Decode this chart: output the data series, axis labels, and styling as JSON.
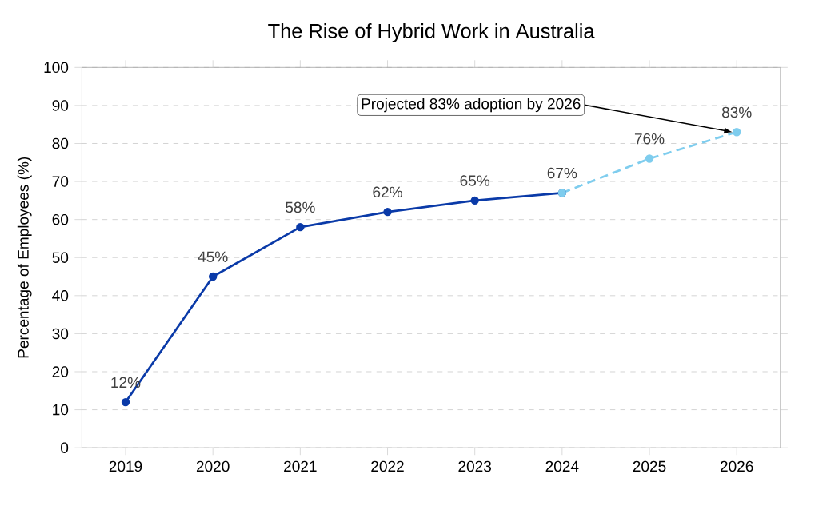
{
  "chart_data": {
    "type": "line",
    "title": "The Rise of Hybrid Work in Australia",
    "ylabel": "Percentage of Employees (%)",
    "categories": [
      "2019",
      "2020",
      "2021",
      "2022",
      "2023",
      "2024",
      "2025",
      "2026"
    ],
    "series": [
      {
        "color": "#0a3aa8",
        "values": [
          12,
          45,
          58,
          62,
          65,
          67,
          null,
          null
        ],
        "value_labels": [
          "12%",
          "45%",
          "58%",
          "62%",
          "65%",
          "67%",
          null,
          null
        ],
        "line_style": "solid"
      },
      {
        "color": "#7fcdee",
        "values": [
          null,
          null,
          null,
          null,
          null,
          67,
          76,
          83
        ],
        "value_labels": [
          null,
          null,
          null,
          null,
          null,
          null,
          "76%",
          "83%"
        ],
        "line_style": "dashed"
      }
    ],
    "annotations": [
      {
        "text": "Projected 83% adoption by 2026",
        "x": "2026",
        "y": 83
      }
    ],
    "ylim": [
      0,
      100
    ],
    "yticks": [
      0,
      10,
      20,
      30,
      40,
      50,
      60,
      70,
      80,
      90,
      100
    ],
    "grid": "y",
    "marker": "circle"
  }
}
